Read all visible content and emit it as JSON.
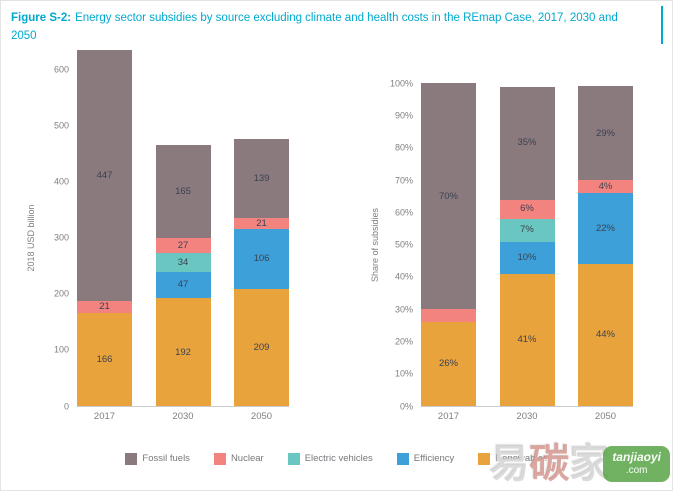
{
  "figure": {
    "label": "Figure S-2:",
    "title": "Energy sector subsidies by source excluding climate and health costs in the REmap Case, 2017, 2030 and 2050",
    "accent_color": "#00a9ce"
  },
  "legend": {
    "items": [
      {
        "name": "Fossil fuels",
        "color": "#8a7a7e"
      },
      {
        "name": "Nuclear",
        "color": "#f3837f"
      },
      {
        "name": "Electric vehicles",
        "color": "#6ac6c0"
      },
      {
        "name": "Efficiency",
        "color": "#3da0d8"
      },
      {
        "name": "Renewables",
        "color": "#e8a33d"
      }
    ],
    "position": "bottom-shared"
  },
  "chart_data": [
    {
      "type": "bar",
      "stacked": true,
      "title": "",
      "xlabel": "",
      "ylabel": "2018 USD billion",
      "ylim": [
        0,
        600
      ],
      "yticks": [
        "0",
        "100",
        "200",
        "300",
        "400",
        "500",
        "600"
      ],
      "grid": false,
      "categories": [
        "2017",
        "2030",
        "2050"
      ],
      "series": [
        {
          "name": "Renewables",
          "values": [
            166,
            192,
            209
          ],
          "labels": [
            "166",
            "192",
            "209"
          ]
        },
        {
          "name": "Efficiency",
          "values": [
            0,
            47,
            106
          ],
          "labels": [
            "",
            "47",
            "106"
          ]
        },
        {
          "name": "Electric vehicles",
          "values": [
            0,
            34,
            0
          ],
          "labels": [
            "",
            "34",
            ""
          ]
        },
        {
          "name": "Nuclear",
          "values": [
            21,
            27,
            21
          ],
          "labels": [
            "21",
            "27",
            "21"
          ]
        },
        {
          "name": "Fossil fuels",
          "values": [
            447,
            165,
            139
          ],
          "labels": [
            "447",
            "165",
            "139"
          ]
        }
      ]
    },
    {
      "type": "bar",
      "stacked": true,
      "title": "",
      "xlabel": "",
      "ylabel": "Share of subsidies",
      "ylim": [
        0,
        100
      ],
      "yticks": [
        "0%",
        "10%",
        "20%",
        "30%",
        "40%",
        "50%",
        "60%",
        "70%",
        "80%",
        "90%",
        "100%"
      ],
      "grid": false,
      "categories": [
        "2017",
        "2030",
        "2050"
      ],
      "series": [
        {
          "name": "Renewables",
          "values": [
            26,
            41,
            44
          ],
          "labels": [
            "26%",
            "41%",
            "44%"
          ]
        },
        {
          "name": "Efficiency",
          "values": [
            0,
            10,
            22
          ],
          "labels": [
            "",
            "10%",
            "22%"
          ]
        },
        {
          "name": "Electric vehicles",
          "values": [
            0,
            7,
            0
          ],
          "labels": [
            "",
            "7%",
            ""
          ]
        },
        {
          "name": "Nuclear",
          "values": [
            4,
            6,
            4
          ],
          "labels": [
            "",
            "6%",
            "4%"
          ]
        },
        {
          "name": "Fossil fuels",
          "values": [
            70,
            35,
            29
          ],
          "labels": [
            "70%",
            "35%",
            "29%"
          ]
        }
      ]
    }
  ],
  "watermark": {
    "characters": [
      "易",
      "碳",
      "家"
    ],
    "site": "tanjiaoyi",
    "tld": ".com"
  }
}
